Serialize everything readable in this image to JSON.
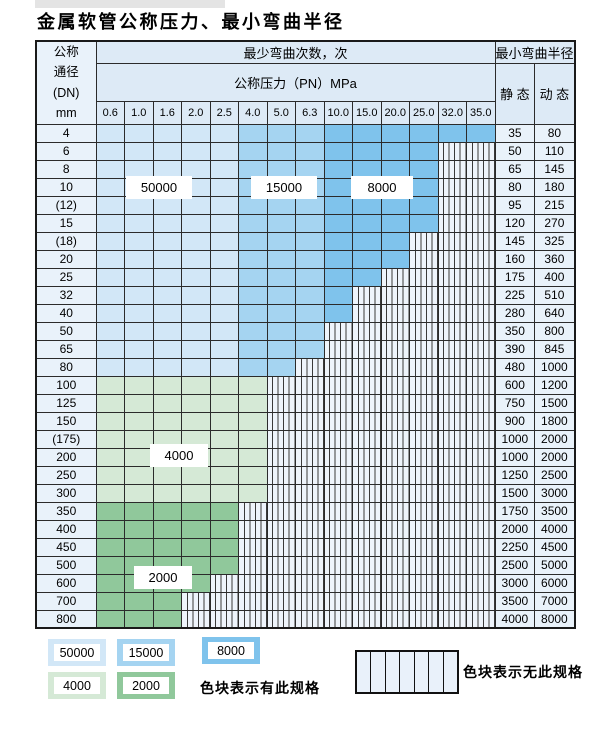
{
  "title": "金属软管公称压力、最小弯曲半径",
  "table": {
    "corner": {
      "line1": "公称",
      "line2": "通径",
      "line3": "(DN)",
      "line4": "mm"
    },
    "header_cycles": "最少弯曲次数，次",
    "header_pressure": "公称压力（PN）MPa",
    "header_radius": "最小弯曲半径",
    "header_static": "静 态",
    "header_dynamic": "动 态",
    "pressures": [
      "0.6",
      "1.0",
      "1.6",
      "2.0",
      "2.5",
      "4.0",
      "5.0",
      "6.3",
      "10.0",
      "15.0",
      "20.0",
      "25.0",
      "32.0",
      "35.0"
    ],
    "rows": [
      {
        "dn": "4",
        "colored": 14,
        "palette": "blue",
        "static": "35",
        "dynamic": "80"
      },
      {
        "dn": "6",
        "colored": 12,
        "palette": "blue",
        "static": "50",
        "dynamic": "110"
      },
      {
        "dn": "8",
        "colored": 12,
        "palette": "blue",
        "static": "65",
        "dynamic": "145"
      },
      {
        "dn": "10",
        "colored": 12,
        "palette": "blue",
        "static": "80",
        "dynamic": "180"
      },
      {
        "dn": "(12)",
        "colored": 12,
        "palette": "blue",
        "static": "95",
        "dynamic": "215"
      },
      {
        "dn": "15",
        "colored": 12,
        "palette": "blue",
        "static": "120",
        "dynamic": "270"
      },
      {
        "dn": "(18)",
        "colored": 11,
        "palette": "blue",
        "static": "145",
        "dynamic": "325"
      },
      {
        "dn": "20",
        "colored": 11,
        "palette": "blue",
        "static": "160",
        "dynamic": "360"
      },
      {
        "dn": "25",
        "colored": 10,
        "palette": "blue",
        "static": "175",
        "dynamic": "400"
      },
      {
        "dn": "32",
        "colored": 9,
        "palette": "blue",
        "static": "225",
        "dynamic": "510"
      },
      {
        "dn": "40",
        "colored": 9,
        "palette": "blue",
        "static": "280",
        "dynamic": "640"
      },
      {
        "dn": "50",
        "colored": 8,
        "palette": "blue",
        "static": "350",
        "dynamic": "800"
      },
      {
        "dn": "65",
        "colored": 8,
        "palette": "blue",
        "static": "390",
        "dynamic": "845"
      },
      {
        "dn": "80",
        "colored": 7,
        "palette": "blue",
        "static": "480",
        "dynamic": "1000"
      },
      {
        "dn": "100",
        "colored": 6,
        "palette": "g4000",
        "static": "600",
        "dynamic": "1200"
      },
      {
        "dn": "125",
        "colored": 6,
        "palette": "g4000",
        "static": "750",
        "dynamic": "1500"
      },
      {
        "dn": "150",
        "colored": 6,
        "palette": "g4000",
        "static": "900",
        "dynamic": "1800"
      },
      {
        "dn": "(175)",
        "colored": 6,
        "palette": "g4000",
        "static": "1000",
        "dynamic": "2000"
      },
      {
        "dn": "200",
        "colored": 6,
        "palette": "g4000",
        "static": "1000",
        "dynamic": "2000"
      },
      {
        "dn": "250",
        "colored": 6,
        "palette": "g4000",
        "static": "1250",
        "dynamic": "2500"
      },
      {
        "dn": "300",
        "colored": 6,
        "palette": "g4000",
        "static": "1500",
        "dynamic": "3000"
      },
      {
        "dn": "350",
        "colored": 5,
        "palette": "g2000",
        "static": "1750",
        "dynamic": "3500"
      },
      {
        "dn": "400",
        "colored": 5,
        "palette": "g2000",
        "static": "2000",
        "dynamic": "4000"
      },
      {
        "dn": "450",
        "colored": 5,
        "palette": "g2000",
        "static": "2250",
        "dynamic": "4500"
      },
      {
        "dn": "500",
        "colored": 5,
        "palette": "g2000",
        "static": "2500",
        "dynamic": "5000"
      },
      {
        "dn": "600",
        "colored": 4,
        "palette": "g2000",
        "static": "3000",
        "dynamic": "6000"
      },
      {
        "dn": "700",
        "colored": 3,
        "palette": "g2000",
        "static": "3500",
        "dynamic": "7000"
      },
      {
        "dn": "800",
        "colored": 3,
        "palette": "g2000",
        "static": "4000",
        "dynamic": "8000"
      }
    ],
    "band_rule": {
      "blue_50000_cols": "0.6-2.5",
      "blue_15000_cols": "4.0-6.3",
      "blue_8000_cols": "10.0-35.0"
    }
  },
  "overlay_labels": {
    "b50000": "50000",
    "b15000": "15000",
    "b8000": "8000",
    "g4000": "4000",
    "g2000": "2000"
  },
  "legend": {
    "s50000": "50000",
    "s15000": "15000",
    "s8000": "8000",
    "s4000": "4000",
    "s2000": "2000",
    "has_spec_text": "色块表示有此规格",
    "no_spec_text": "色块表示无此规格"
  },
  "colors": {
    "c50000": "#d2e7f7",
    "c15000": "#a5d4f1",
    "c8000": "#7fc3ec",
    "c4000": "#d5e9d6",
    "c2000": "#90c89b",
    "hatch_bg": "#eef4fb",
    "header_bg": "#ddeaf6",
    "label_col_bg": "#e9f2fa",
    "grid": "#2b2b2b"
  }
}
